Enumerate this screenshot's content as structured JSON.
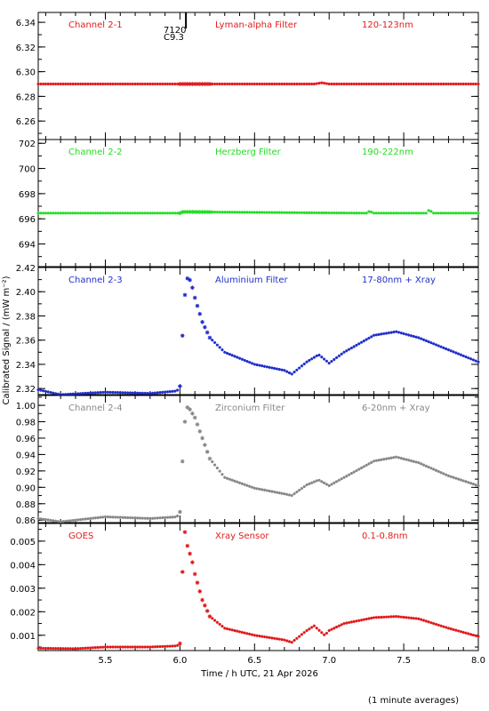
{
  "chart_data": {
    "type": "scatter",
    "x_axis": {
      "label": "Time / h UTC, 21 Apr 2026",
      "range": [
        5.05,
        8.0
      ],
      "ticks": [
        "5.5",
        "6.0",
        "6.5",
        "7.0",
        "7.5",
        "8.0"
      ]
    },
    "y_axis_label": "Calibrated Signal / (mW m⁻²)",
    "footnote": "(1 minute averages)",
    "flare_marker": {
      "x": 6.04,
      "labels": [
        "7120",
        "C9.3"
      ]
    },
    "panels": [
      {
        "channel": "Channel 2-1",
        "filter": "Lyman-alpha Filter",
        "band": "120-123nm",
        "color": "#e31a1c",
        "ylim": [
          6.245,
          6.348
        ],
        "yticks": [
          "6.26",
          "6.28",
          "6.30",
          "6.32",
          "6.34"
        ],
        "series": [
          [
            5.05,
            6.29
          ],
          [
            6.0,
            6.29
          ],
          [
            6.9,
            6.29
          ],
          [
            6.95,
            6.291
          ],
          [
            7.0,
            6.29
          ],
          [
            8.0,
            6.29
          ]
        ]
      },
      {
        "channel": "Channel 2-2",
        "filter": "Herzberg Filter",
        "band": "190-222nm",
        "color": "#22dd22",
        "ylim": [
          692.2,
          702.3
        ],
        "yticks": [
          "694",
          "696",
          "698",
          "700",
          "702"
        ],
        "series": [
          [
            5.05,
            696.45
          ],
          [
            6.0,
            696.45
          ],
          [
            6.02,
            696.55
          ],
          [
            7.25,
            696.45
          ],
          [
            7.27,
            696.6
          ],
          [
            7.3,
            696.45
          ],
          [
            7.65,
            696.45
          ],
          [
            7.67,
            696.7
          ],
          [
            7.7,
            696.45
          ],
          [
            8.0,
            696.45
          ]
        ]
      },
      {
        "channel": "Channel 2-3",
        "filter": "Aluminium Filter",
        "band": "17-80nm + Xray",
        "color": "#1f2fcc",
        "ylim": [
          2.315,
          2.42
        ],
        "yticks": [
          "2.32",
          "2.34",
          "2.36",
          "2.38",
          "2.40",
          "2.42"
        ],
        "series": [
          [
            5.05,
            2.319
          ],
          [
            5.2,
            2.315
          ],
          [
            5.5,
            2.317
          ],
          [
            5.8,
            2.316
          ],
          [
            5.98,
            2.318
          ],
          [
            6.0,
            2.322
          ],
          [
            6.02,
            2.372
          ],
          [
            6.04,
            2.41
          ],
          [
            6.06,
            2.412
          ],
          [
            6.08,
            2.405
          ],
          [
            6.1,
            2.395
          ],
          [
            6.15,
            2.375
          ],
          [
            6.2,
            2.362
          ],
          [
            6.3,
            2.35
          ],
          [
            6.5,
            2.34
          ],
          [
            6.7,
            2.335
          ],
          [
            6.75,
            2.332
          ],
          [
            6.85,
            2.342
          ],
          [
            6.93,
            2.348
          ],
          [
            7.0,
            2.341
          ],
          [
            7.1,
            2.35
          ],
          [
            7.3,
            2.364
          ],
          [
            7.45,
            2.367
          ],
          [
            7.6,
            2.362
          ],
          [
            7.8,
            2.352
          ],
          [
            8.0,
            2.342
          ]
        ]
      },
      {
        "channel": "Channel 2-4",
        "filter": "Zirconium Filter",
        "band": "6-20nm + Xray",
        "color": "#888888",
        "ylim": [
          0.857,
          1.012
        ],
        "yticks": [
          "0.86",
          "0.88",
          "0.90",
          "0.92",
          "0.94",
          "0.96",
          "0.98",
          "1.00"
        ],
        "series": [
          [
            5.05,
            0.862
          ],
          [
            5.2,
            0.858
          ],
          [
            5.5,
            0.864
          ],
          [
            5.8,
            0.862
          ],
          [
            5.98,
            0.864
          ],
          [
            6.0,
            0.87
          ],
          [
            6.02,
            0.944
          ],
          [
            6.04,
            0.998
          ],
          [
            6.06,
            0.997
          ],
          [
            6.1,
            0.985
          ],
          [
            6.15,
            0.96
          ],
          [
            6.2,
            0.935
          ],
          [
            6.3,
            0.912
          ],
          [
            6.5,
            0.899
          ],
          [
            6.7,
            0.892
          ],
          [
            6.75,
            0.89
          ],
          [
            6.85,
            0.903
          ],
          [
            6.93,
            0.909
          ],
          [
            7.0,
            0.902
          ],
          [
            7.1,
            0.912
          ],
          [
            7.3,
            0.932
          ],
          [
            7.45,
            0.937
          ],
          [
            7.6,
            0.93
          ],
          [
            7.8,
            0.914
          ],
          [
            8.0,
            0.902
          ]
        ]
      },
      {
        "channel": "GOES",
        "filter": "Xray Sensor",
        "band": "0.1-0.8nm",
        "color": "#e31a1c",
        "ylim": [
          0.00035,
          0.00575
        ],
        "yticks": [
          "0.001",
          "0.002",
          "0.003",
          "0.004",
          "0.005"
        ],
        "series": [
          [
            5.05,
            0.00045
          ],
          [
            5.3,
            0.00043
          ],
          [
            5.5,
            0.0005
          ],
          [
            5.8,
            0.0005
          ],
          [
            5.98,
            0.00055
          ],
          [
            6.0,
            0.00065
          ],
          [
            6.02,
            0.0043
          ],
          [
            6.03,
            0.0055
          ],
          [
            6.05,
            0.0048
          ],
          [
            6.08,
            0.0042
          ],
          [
            6.1,
            0.0036
          ],
          [
            6.15,
            0.0025
          ],
          [
            6.2,
            0.0018
          ],
          [
            6.3,
            0.0013
          ],
          [
            6.5,
            0.001
          ],
          [
            6.7,
            0.0008
          ],
          [
            6.75,
            0.0007
          ],
          [
            6.85,
            0.0012
          ],
          [
            6.9,
            0.0014
          ],
          [
            6.97,
            0.001
          ],
          [
            7.0,
            0.0012
          ],
          [
            7.1,
            0.0015
          ],
          [
            7.3,
            0.00175
          ],
          [
            7.45,
            0.0018
          ],
          [
            7.6,
            0.0017
          ],
          [
            7.8,
            0.0013
          ],
          [
            8.0,
            0.00095
          ]
        ]
      }
    ]
  }
}
